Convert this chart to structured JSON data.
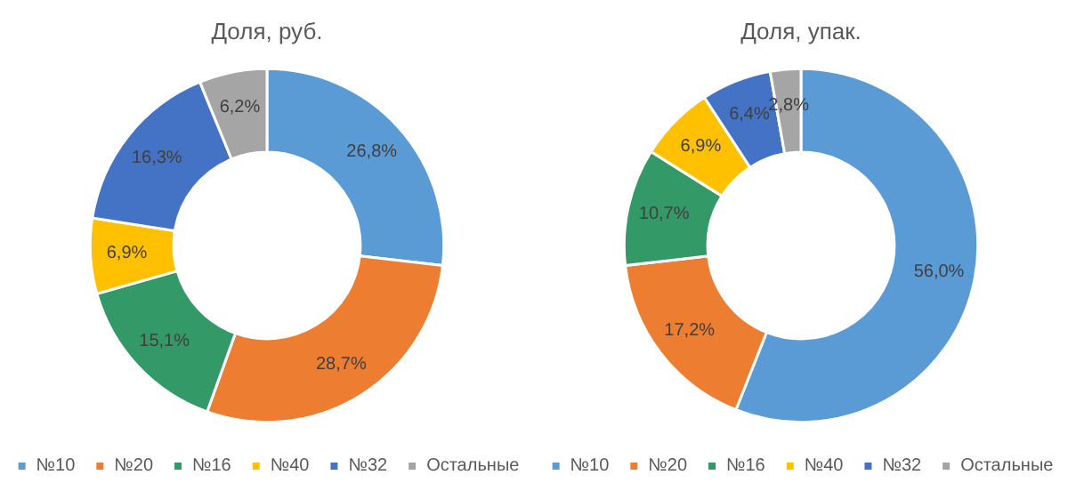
{
  "chart_data": [
    {
      "type": "donut",
      "title": "Доля, руб.",
      "categories": [
        "№10",
        "№20",
        "№16",
        "№40",
        "№32",
        "Остальные"
      ],
      "values": [
        26.8,
        28.7,
        15.1,
        6.9,
        16.3,
        6.2
      ],
      "value_labels": [
        "26,8%",
        "28,7%",
        "15,1%",
        "6,9%",
        "16,3%",
        "6,2%"
      ],
      "colors": [
        "#5b9bd5",
        "#ed7d31",
        "#339966",
        "#ffc000",
        "#4472c4",
        "#a5a5a5"
      ],
      "legend": "bottom"
    },
    {
      "type": "donut",
      "title": "Доля, упак.",
      "categories": [
        "№10",
        "№20",
        "№16",
        "№40",
        "№32",
        "Остальные"
      ],
      "values": [
        56.0,
        17.2,
        10.7,
        6.9,
        6.4,
        2.8
      ],
      "value_labels": [
        "56,0%",
        "17,2%",
        "10,7%",
        "6,9%",
        "6,4%",
        "2,8%"
      ],
      "colors": [
        "#5b9bd5",
        "#ed7d31",
        "#339966",
        "#ffc000",
        "#4472c4",
        "#a5a5a5"
      ],
      "legend": "bottom"
    }
  ]
}
